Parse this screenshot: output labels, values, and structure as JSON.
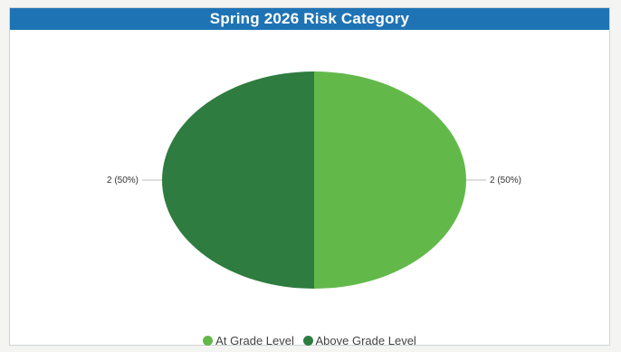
{
  "chart_data": {
    "type": "pie",
    "title": "Spring 2026 Risk Category",
    "categories": [
      "At Grade Level",
      "Above Grade Level"
    ],
    "values": [
      2,
      2
    ],
    "data_labels": [
      "2 (50%)",
      "2 (50%)"
    ],
    "colors": [
      "#62b94a",
      "#2e7c3f"
    ],
    "legend_position": "bottom"
  }
}
